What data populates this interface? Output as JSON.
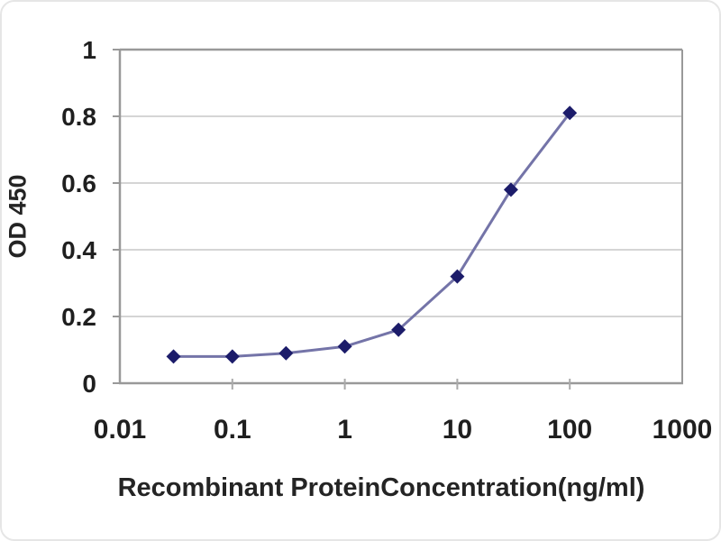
{
  "chart_data": {
    "type": "line",
    "title": "",
    "xlabel": "Recombinant ProteinConcentration(ng/ml)",
    "ylabel": "OD 450",
    "x_scale": "log",
    "xlim": [
      0.01,
      1000
    ],
    "ylim": [
      0,
      1
    ],
    "x_ticks": [
      0.01,
      0.1,
      1,
      10,
      100,
      1000
    ],
    "x_tick_labels": [
      "0.01",
      "0.1",
      "1",
      "10",
      "100",
      "1000"
    ],
    "y_ticks": [
      0,
      0.2,
      0.4,
      0.6,
      0.8,
      1
    ],
    "y_tick_labels": [
      "0",
      "0.2",
      "0.4",
      "0.6",
      "0.8",
      "1"
    ],
    "grid": "horizontal",
    "legend": "none",
    "series": [
      {
        "name": "OD 450",
        "marker": "diamond",
        "x": [
          0.03,
          0.1,
          0.3,
          1,
          3,
          10,
          30,
          100
        ],
        "y": [
          0.08,
          0.08,
          0.09,
          0.11,
          0.16,
          0.32,
          0.58,
          0.81
        ]
      }
    ],
    "colors": {
      "line": "#7474a8",
      "marker": "#1c1c6a",
      "grid": "#bcbcbc",
      "axis": "#999999",
      "tick": "#aaaaaa",
      "text": "#1f1f1f",
      "background": "#ffffff"
    }
  }
}
